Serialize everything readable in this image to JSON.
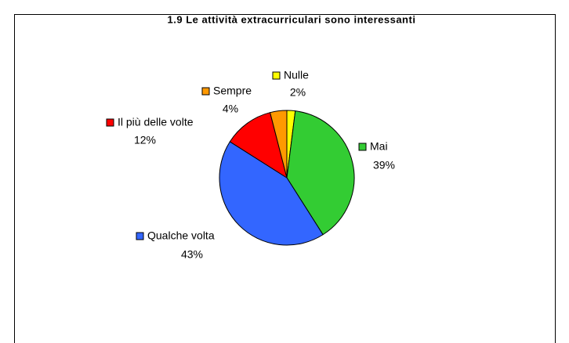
{
  "chart_data": {
    "type": "pie",
    "title": "1.9  Le attività extracurriculari sono interessanti",
    "categories": [
      "Nulle",
      "Mai",
      "Qualche volta",
      "Il più delle volte",
      "Sempre"
    ],
    "values": [
      2,
      39,
      43,
      12,
      4
    ],
    "value_labels": [
      "2%",
      "39%",
      "43%",
      "12%",
      "4%"
    ],
    "colors": [
      "#ffff00",
      "#33cc33",
      "#3366ff",
      "#ff0000",
      "#ff9900"
    ]
  }
}
